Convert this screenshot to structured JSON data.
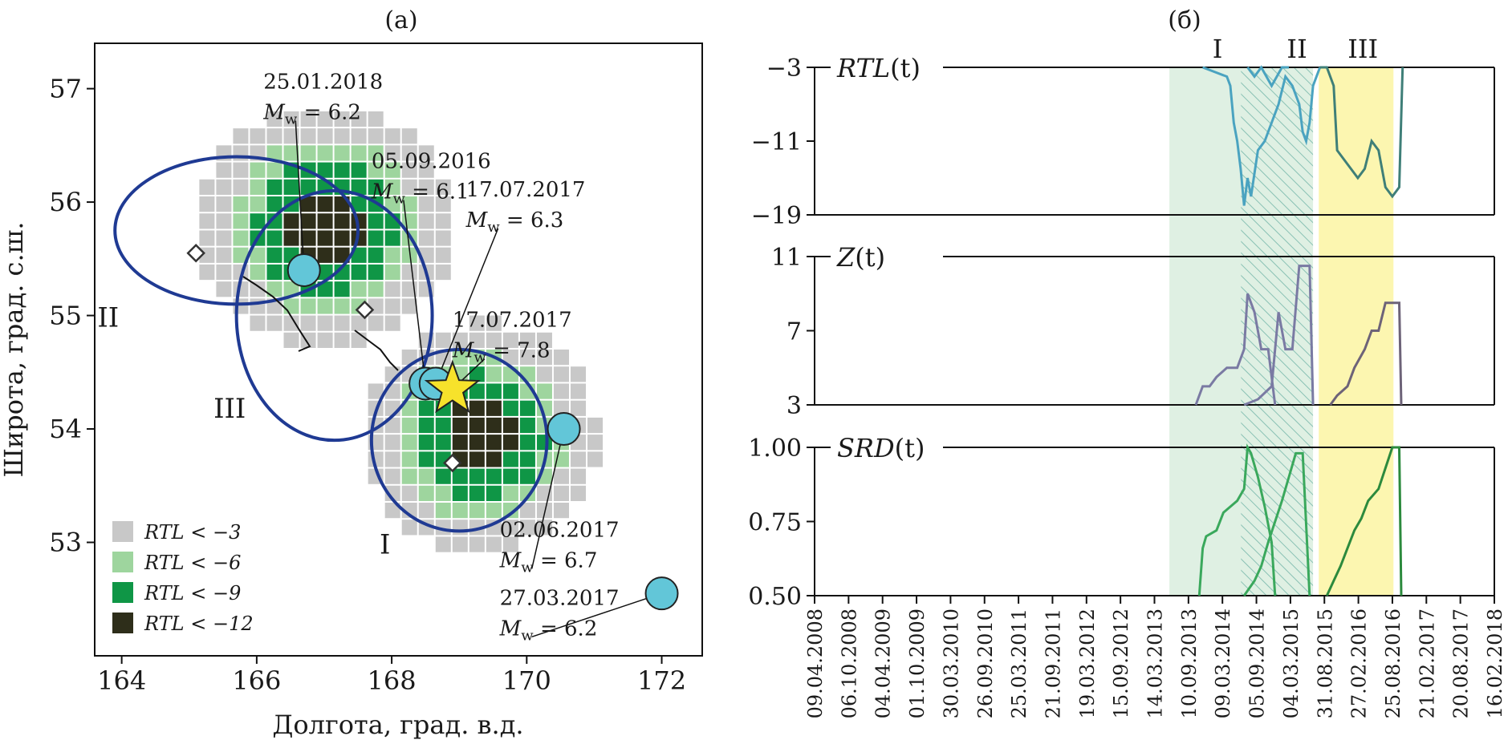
{
  "colors": {
    "gray_cell": "#c8c8c8",
    "light_green": "#9ed59e",
    "mid_green": "#0f9646",
    "dark_cell": "#2e2e1a",
    "contour": "#1f3a93",
    "event": "#62c6d8",
    "star": "#f7e22b",
    "period1_bg": "#dff0e3",
    "period3_bg": "#fcf6b0",
    "rtl_line": "#4aa3c0",
    "z_line": "#7a7aa3",
    "srd_line": "#3aa85c",
    "late_rtl_line": "#3f7f78",
    "late_z_line": "#6d6378",
    "late_srd_line": "#2c8a3d"
  },
  "left_panel": {
    "label": "(а)",
    "xlabel": "Долгота, град. в.д.",
    "ylabel": "Широта, град. с.ш.",
    "xlim": [
      163.6,
      172.6
    ],
    "ylim": [
      52.0,
      57.4
    ],
    "xticks": [
      164,
      166,
      168,
      170,
      172
    ],
    "yticks": [
      53,
      54,
      55,
      56,
      57
    ],
    "xtick_labels": [
      "164",
      "166",
      "168",
      "170",
      "172"
    ],
    "ytick_labels": [
      "53",
      "54",
      "55",
      "56",
      "57"
    ],
    "legend": [
      {
        "text": "RTL < −3",
        "color_key": "gray_cell"
      },
      {
        "text": "RTL < −6",
        "color_key": "light_green"
      },
      {
        "text": "RTL < −9",
        "color_key": "mid_green"
      },
      {
        "text": "RTL < −12",
        "color_key": "dark_cell"
      }
    ],
    "region_labels": [
      {
        "text": "I",
        "lon": 167.9,
        "lat": 52.9
      },
      {
        "text": "II",
        "lon": 163.8,
        "lat": 54.9
      },
      {
        "text": "III",
        "lon": 165.6,
        "lat": 54.1
      }
    ],
    "regions": [
      {
        "name": "I",
        "lon_range": [
          167.7,
          170.3
        ],
        "lat_range": [
          53.1,
          54.7
        ]
      },
      {
        "name": "II",
        "lon_range": [
          163.9,
          167.5
        ],
        "lat_range": [
          55.1,
          56.4
        ]
      },
      {
        "name": "III",
        "lon_range": [
          165.7,
          168.6
        ],
        "lat_range": [
          53.9,
          56.1
        ]
      }
    ],
    "diamonds": [
      {
        "lon": 165.1,
        "lat": 55.55
      },
      {
        "lon": 167.6,
        "lat": 55.05
      },
      {
        "lon": 168.9,
        "lat": 53.7
      }
    ],
    "events": [
      {
        "date": "25.01.2018",
        "mw": "6.2",
        "lon": 166.7,
        "lat": 55.4,
        "text_lon": 166.1,
        "text_lat": 57.0
      },
      {
        "date": "05.09.2016",
        "mw": "6.1",
        "lon": 168.5,
        "lat": 54.4,
        "text_lon": 167.7,
        "text_lat": 56.3
      },
      {
        "date": "17.07.2017",
        "mw": "6.3",
        "lon": 168.65,
        "lat": 54.4,
        "text_lon": 169.1,
        "text_lat": 56.05
      },
      {
        "date": "17.07.2017",
        "mw": "7.8",
        "lon": 168.9,
        "lat": 54.35,
        "text_lon": 168.9,
        "text_lat": 54.9,
        "star": true
      },
      {
        "date": "02.06.2017",
        "mw": "6.7",
        "lon": 170.55,
        "lat": 54.0,
        "text_lon": 169.6,
        "text_lat": 53.05
      },
      {
        "date": "27.03.2017",
        "mw": "6.2",
        "lon": 172.0,
        "lat": 52.55,
        "text_lon": 169.6,
        "text_lat": 52.45
      }
    ],
    "mw_prefix": "M",
    "mw_sub": "w",
    "mw_eq": " = "
  },
  "right_panel": {
    "label": "(б)",
    "period_labels": [
      "I",
      "II",
      "III"
    ],
    "dates": [
      "09.04.2008",
      "06.10.2008",
      "04.04.2009",
      "01.10.2009",
      "30.03.2010",
      "26.09.2010",
      "25.03.2011",
      "21.09.2011",
      "19.03.2012",
      "15.09.2012",
      "14.03.2013",
      "10.09.2013",
      "09.03.2014",
      "05.09.2014",
      "04.03.2015",
      "31.08.2015",
      "27.02.2016",
      "25.08.2016",
      "21.02.2017",
      "20.08.2017",
      "16.02.2018"
    ],
    "period_shading": {
      "I": {
        "from": "2013-06-01",
        "to": "2015-07-01"
      },
      "II_hatch": {
        "from": "2014-06-15",
        "to": "2015-07-01"
      },
      "III": {
        "from": "2015-08-01",
        "to": "2016-09-01"
      }
    },
    "panels": [
      {
        "name": "RTL",
        "label_main": "RTL",
        "label_arg": "(t)",
        "yticks": [
          "−3",
          "−11",
          "−19"
        ],
        "ylim": [
          -19,
          -3
        ],
        "lines": [
          {
            "color_key": "rtl_line",
            "points": [
              [
                2013.9,
                -3
              ],
              [
                2014.25,
                -4
              ],
              [
                2014.3,
                -5
              ],
              [
                2014.35,
                -9
              ],
              [
                2014.4,
                -11
              ],
              [
                2014.45,
                -14
              ],
              [
                2014.5,
                -18
              ],
              [
                2014.55,
                -15
              ],
              [
                2014.6,
                -17
              ],
              [
                2014.7,
                -12
              ],
              [
                2014.8,
                -11
              ],
              [
                2014.9,
                -9
              ],
              [
                2015.0,
                -7
              ],
              [
                2015.1,
                -4
              ],
              [
                2015.2,
                -5
              ],
              [
                2015.3,
                -7
              ],
              [
                2015.35,
                -10
              ],
              [
                2015.4,
                -11
              ],
              [
                2015.45,
                -9
              ],
              [
                2015.5,
                -5
              ],
              [
                2015.6,
                -3
              ]
            ]
          },
          {
            "color_key": "rtl_line",
            "points": [
              [
                2014.55,
                -3
              ],
              [
                2014.65,
                -4
              ],
              [
                2014.75,
                -3
              ],
              [
                2014.9,
                -5
              ],
              [
                2015.05,
                -3
              ],
              [
                2015.15,
                -3
              ]
            ]
          },
          {
            "color_key": "late_rtl_line",
            "points": [
              [
                2015.6,
                -3
              ],
              [
                2015.7,
                -3
              ],
              [
                2015.8,
                -5
              ],
              [
                2015.85,
                -12
              ],
              [
                2015.95,
                -13
              ],
              [
                2016.05,
                -14
              ],
              [
                2016.15,
                -15
              ],
              [
                2016.25,
                -14
              ],
              [
                2016.35,
                -11
              ],
              [
                2016.45,
                -12
              ],
              [
                2016.55,
                -16
              ],
              [
                2016.65,
                -17
              ],
              [
                2016.75,
                -16
              ],
              [
                2016.8,
                -3
              ]
            ]
          }
        ]
      },
      {
        "name": "Z",
        "label_main": "Z",
        "label_arg": "(t)",
        "yticks": [
          "11",
          "7",
          "3"
        ],
        "ylim": [
          3,
          11
        ],
        "lines": [
          {
            "color_key": "z_line",
            "points": [
              [
                2013.8,
                3
              ],
              [
                2013.9,
                4
              ],
              [
                2014.0,
                4
              ],
              [
                2014.1,
                4.5
              ],
              [
                2014.25,
                5
              ],
              [
                2014.4,
                5
              ],
              [
                2014.5,
                6
              ],
              [
                2014.55,
                9
              ],
              [
                2014.65,
                8
              ],
              [
                2014.75,
                6
              ],
              [
                2014.85,
                6
              ],
              [
                2014.95,
                3
              ]
            ]
          },
          {
            "color_key": "z_line",
            "points": [
              [
                2014.5,
                3
              ],
              [
                2014.7,
                3.3
              ],
              [
                2014.9,
                4
              ],
              [
                2015.0,
                8
              ],
              [
                2015.1,
                6
              ],
              [
                2015.2,
                6
              ],
              [
                2015.3,
                10.5
              ],
              [
                2015.45,
                10.5
              ],
              [
                2015.5,
                3
              ]
            ]
          },
          {
            "color_key": "late_z_line",
            "points": [
              [
                2015.75,
                3
              ],
              [
                2015.85,
                3.5
              ],
              [
                2016.0,
                4
              ],
              [
                2016.1,
                5
              ],
              [
                2016.25,
                6
              ],
              [
                2016.35,
                7
              ],
              [
                2016.45,
                7
              ],
              [
                2016.55,
                8.5
              ],
              [
                2016.75,
                8.5
              ],
              [
                2016.78,
                3
              ]
            ]
          }
        ]
      },
      {
        "name": "SRD",
        "label_main": "SRD",
        "label_arg": "(t)",
        "yticks": [
          "1.00",
          "0.75",
          "0.50"
        ],
        "ylim": [
          0.5,
          1.0
        ],
        "lines": [
          {
            "color_key": "srd_line",
            "points": [
              [
                2013.85,
                0.5
              ],
              [
                2013.9,
                0.66
              ],
              [
                2013.95,
                0.7
              ],
              [
                2014.1,
                0.72
              ],
              [
                2014.2,
                0.78
              ],
              [
                2014.3,
                0.8
              ],
              [
                2014.4,
                0.82
              ],
              [
                2014.5,
                0.86
              ],
              [
                2014.55,
                1.0
              ],
              [
                2014.6,
                0.98
              ],
              [
                2014.7,
                0.9
              ],
              [
                2014.8,
                0.8
              ],
              [
                2014.9,
                0.68
              ],
              [
                2014.95,
                0.5
              ]
            ]
          },
          {
            "color_key": "srd_line",
            "points": [
              [
                2014.5,
                0.5
              ],
              [
                2014.65,
                0.55
              ],
              [
                2014.75,
                0.6
              ],
              [
                2014.85,
                0.68
              ],
              [
                2014.95,
                0.75
              ],
              [
                2015.05,
                0.82
              ],
              [
                2015.15,
                0.9
              ],
              [
                2015.25,
                0.98
              ],
              [
                2015.35,
                0.98
              ],
              [
                2015.45,
                0.5
              ]
            ]
          },
          {
            "color_key": "late_srd_line",
            "points": [
              [
                2015.7,
                0.5
              ],
              [
                2015.8,
                0.55
              ],
              [
                2015.9,
                0.6
              ],
              [
                2016.0,
                0.66
              ],
              [
                2016.1,
                0.72
              ],
              [
                2016.2,
                0.76
              ],
              [
                2016.3,
                0.82
              ],
              [
                2016.45,
                0.86
              ],
              [
                2016.55,
                0.93
              ],
              [
                2016.65,
                1.0
              ],
              [
                2016.75,
                1.0
              ],
              [
                2016.78,
                0.5
              ]
            ]
          }
        ]
      }
    ]
  },
  "chart_data": {
    "type": "line",
    "title": "",
    "xlabel": "",
    "ylabel": "",
    "x_range": [
      2008.27,
      2018.13
    ],
    "series": [
      {
        "name": "RTL(t)"
      },
      {
        "name": "Z(t)"
      },
      {
        "name": "SRD(t)"
      }
    ]
  }
}
